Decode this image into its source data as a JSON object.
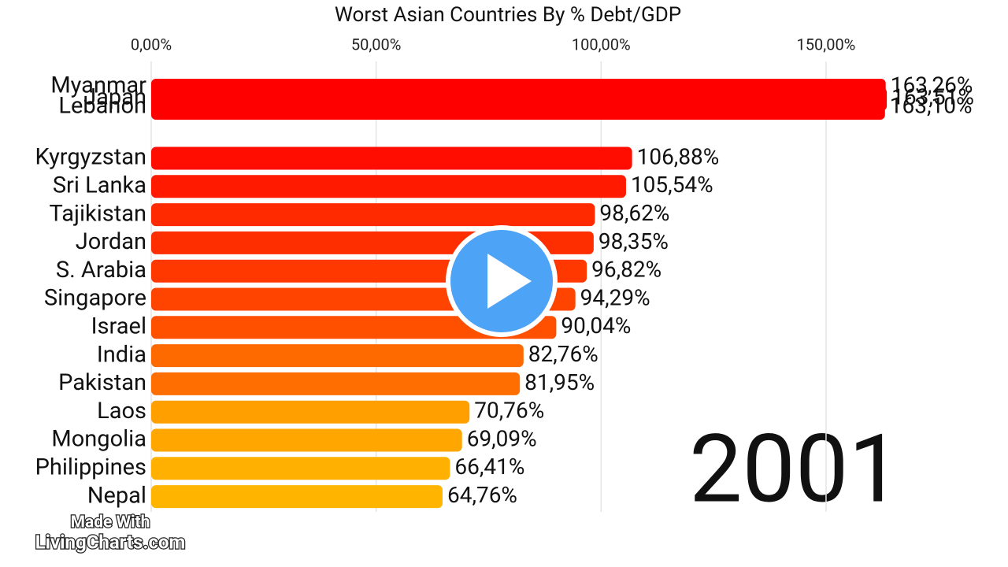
{
  "chart_data": {
    "type": "bar",
    "orientation": "horizontal",
    "title": "Worst Asian Countries By % Debt/GDP",
    "categories": [
      "Myanmar",
      "Japan",
      "Lebanon",
      "Kyrgyzstan",
      "Sri Lanka",
      "Tajikistan",
      "Jordan",
      "S. Arabia",
      "Singapore",
      "Israel",
      "India",
      "Pakistan",
      "Laos",
      "Mongolia",
      "Philippines",
      "Nepal"
    ],
    "values": [
      163.26,
      163.51,
      163.1,
      106.88,
      105.54,
      98.62,
      98.35,
      96.82,
      94.29,
      90.04,
      82.76,
      81.95,
      70.76,
      69.09,
      66.41,
      64.76
    ],
    "value_labels": [
      "163,26%",
      "163,51%",
      "163,10%",
      "106,88%",
      "105,54%",
      "98,62%",
      "98,35%",
      "96,82%",
      "94,29%",
      "90,04%",
      "82,76%",
      "81,95%",
      "70,76%",
      "69,09%",
      "66,41%",
      "64,76%"
    ],
    "colors": [
      "#ff0000",
      "#ff0000",
      "#ff0000",
      "#ff0d00",
      "#ff1a00",
      "#ff2a00",
      "#ff2e00",
      "#ff3800",
      "#ff4400",
      "#ff5000",
      "#ff6a00",
      "#ff6e00",
      "#ffa000",
      "#ffa600",
      "#ffb000",
      "#ffb400"
    ],
    "xlim": [
      0,
      175
    ],
    "xticks": [
      {
        "value": 0,
        "label": "0,00%"
      },
      {
        "value": 50,
        "label": "50,00%"
      },
      {
        "value": 100,
        "label": "100,00%"
      },
      {
        "value": 150,
        "label": "150,00%"
      }
    ],
    "grid": true,
    "year": "2001",
    "watermark": [
      "Made With",
      "LivingCharts.com"
    ]
  }
}
